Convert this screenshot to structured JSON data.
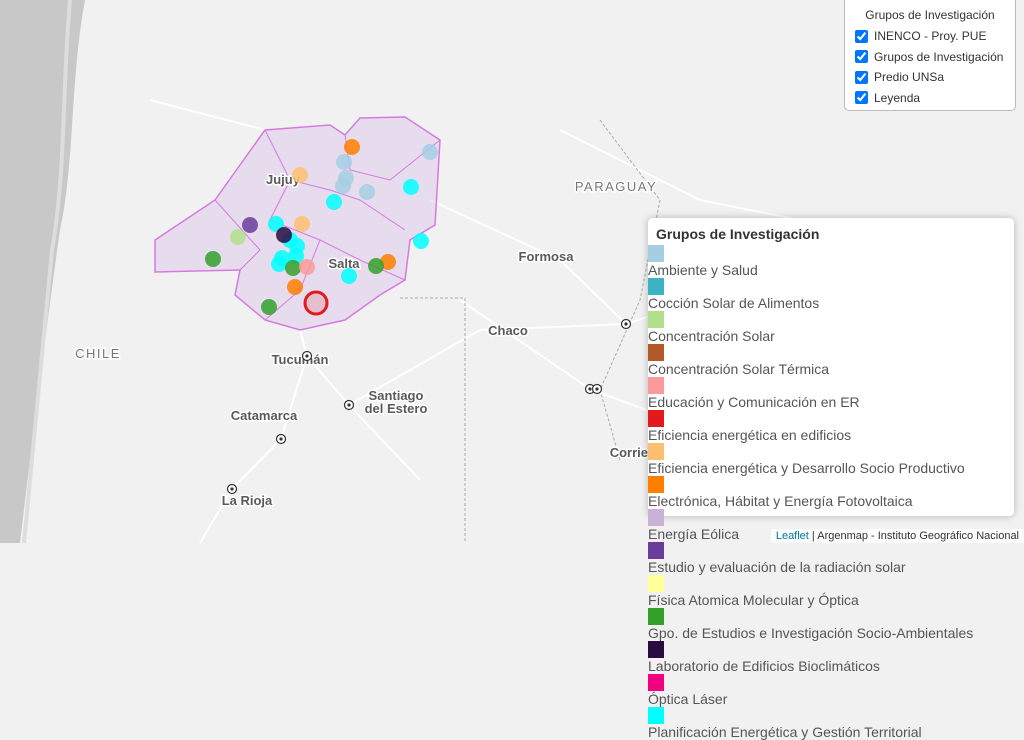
{
  "layer_control": {
    "title": "Grupos de Investigación",
    "items": [
      {
        "label": "INENCO - Proy. PUE",
        "checked": true
      },
      {
        "label": "Grupos de Investigación",
        "checked": true
      },
      {
        "label": "Predio UNSa",
        "checked": true
      },
      {
        "label": "Leyenda",
        "checked": true
      }
    ]
  },
  "legend": {
    "title": "Grupos de Investigación",
    "items": [
      {
        "label": "Ambiente y Salud",
        "color": "#a6cee3"
      },
      {
        "label": "Cocción Solar de Alimentos",
        "color": "#3bb3c3"
      },
      {
        "label": "Concentración Solar",
        "color": "#b2df8a"
      },
      {
        "label": "Concentración Solar Térmica",
        "color": "#b15928"
      },
      {
        "label": "Educación y Comunicación en ER",
        "color": "#fb9a99"
      },
      {
        "label": "Eficiencia energética en edificios",
        "color": "#e31a1c"
      },
      {
        "label": "Eficiencia energética y Desarrollo Socio Productivo",
        "color": "#fdbf6f"
      },
      {
        "label": "Electrónica, Hábitat y Energía Fotovoltaica",
        "color": "#ff7f00"
      },
      {
        "label": "Energía Eólica",
        "color": "#cab2d6"
      },
      {
        "label": "Estudio y evaluación de la radiación solar",
        "color": "#6a3d9a"
      },
      {
        "label": "Física Atomica Molecular y Óptica",
        "color": "#ffff99"
      },
      {
        "label": "Gpo. de Estudios e Investigación Socio-Ambientales",
        "color": "#33a02c"
      },
      {
        "label": "Laboratorio de Edificios Bioclimáticos",
        "color": "#2a0a3f"
      },
      {
        "label": "Óptica Láser",
        "color": "#f0027f"
      },
      {
        "label": "Planificación Energética y Gestión Territorial",
        "color": "#00ffff"
      }
    ]
  },
  "map_labels": [
    "Jujuy",
    "Salta",
    "PARAGUAY",
    "Formosa",
    "Chaco",
    "CHILE",
    "Tucumán",
    "Santiago",
    "del Estero",
    "Catamarca",
    "La Rioja",
    "Corrie"
  ],
  "attribution": {
    "link": "Leaflet",
    "text": "| Argenmap - Instituto Geográfico Nacional"
  }
}
